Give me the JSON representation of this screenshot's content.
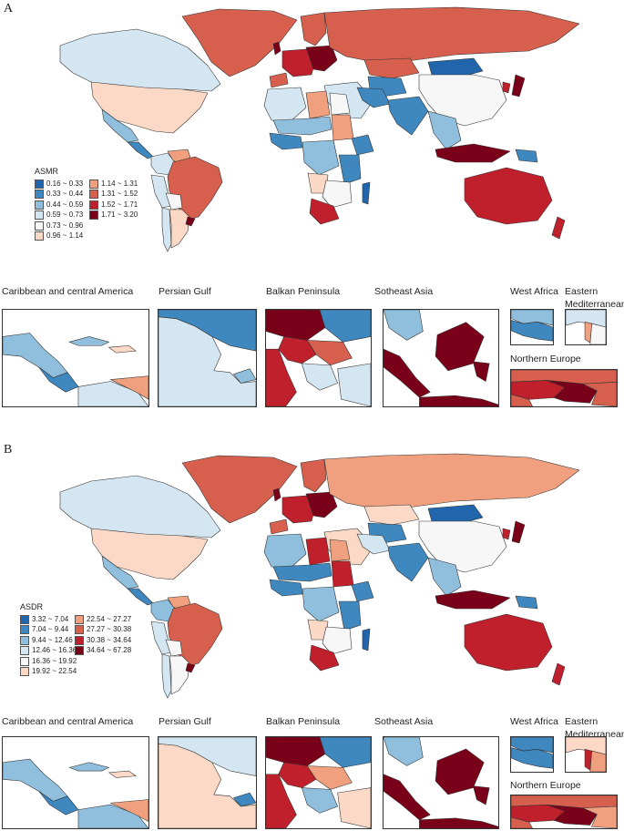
{
  "panels": [
    {
      "letter": "A",
      "legend_title": "ASMR",
      "legend": [
        {
          "label": "0.16 ~ 0.33",
          "color": "#2166ac"
        },
        {
          "label": "0.33 ~ 0.44",
          "color": "#3f87bf"
        },
        {
          "label": "0.44 ~ 0.59",
          "color": "#8fbfdd"
        },
        {
          "label": "0.59 ~ 0.73",
          "color": "#d4e6f2"
        },
        {
          "label": "0.73 ~ 0.96",
          "color": "#f7f7f7"
        },
        {
          "label": "0.96 ~ 1.14",
          "color": "#fbd9c6"
        },
        {
          "label": "1.14 ~ 1.31",
          "color": "#f0a07e"
        },
        {
          "label": "1.31 ~ 1.52",
          "color": "#d6604d"
        },
        {
          "label": "1.52 ~ 1.71",
          "color": "#c0202b"
        },
        {
          "label": "1.71 ~ 3.20",
          "color": "#7a0019"
        }
      ],
      "insets": [
        {
          "label": "Caribbean and central America"
        },
        {
          "label": "Persian Gulf"
        },
        {
          "label": "Balkan Peninsula"
        },
        {
          "label": "Sotheast Asia"
        },
        {
          "label": "West Africa"
        },
        {
          "label": "Eastern\nMediterranean"
        },
        {
          "label": "Northern Europe"
        }
      ]
    },
    {
      "letter": "B",
      "legend_title": "ASDR",
      "legend": [
        {
          "label": "3.32 ~ 7.04",
          "color": "#2166ac"
        },
        {
          "label": "7.04 ~ 9.44",
          "color": "#3f87bf"
        },
        {
          "label": "9.44 ~ 12.46",
          "color": "#8fbfdd"
        },
        {
          "label": "12.46 ~ 16.36",
          "color": "#d4e6f2"
        },
        {
          "label": "16.36 ~ 19.92",
          "color": "#f7f7f7"
        },
        {
          "label": "19.92 ~ 22.54",
          "color": "#fbd9c6"
        },
        {
          "label": "22.54 ~ 27.27",
          "color": "#f0a07e"
        },
        {
          "label": "27.27 ~ 30.38",
          "color": "#d6604d"
        },
        {
          "label": "30.38 ~ 34.64",
          "color": "#c0202b"
        },
        {
          "label": "34.64 ~ 67.28",
          "color": "#7a0019"
        }
      ],
      "insets": [
        {
          "label": "Caribbean and central America"
        },
        {
          "label": "Persian Gulf"
        },
        {
          "label": "Balkan Peninsula"
        },
        {
          "label": "Sotheast Asia"
        },
        {
          "label": "West Africa"
        },
        {
          "label": "Eastern\nMediterranean"
        },
        {
          "label": "Northern Europe"
        }
      ]
    }
  ],
  "regions": {
    "A": {
      "greenland": "#d6604d",
      "canada": "#d4e6f2",
      "usa": "#fbd9c6",
      "mexico": "#8fbfdd",
      "central_america": "#3f87bf",
      "colombia": "#d4e6f2",
      "venezuela": "#f0a07e",
      "peru": "#d4e6f2",
      "brazil": "#d6604d",
      "bolivia": "#f7f7f7",
      "argentina": "#fbd9c6",
      "chile": "#d4e6f2",
      "uruguay": "#7a0019",
      "russia": "#d6604d",
      "scandinavia": "#d6604d",
      "west_europe": "#c0202b",
      "east_europe": "#7a0019",
      "uk": "#7a0019",
      "iberia": "#d6604d",
      "mongolia": "#2166ac",
      "china": "#f7f7f7",
      "kazakhstan": "#d6604d",
      "central_asia": "#3f87bf",
      "middle_east": "#d4e6f2",
      "iran": "#3f87bf",
      "india": "#3f87bf",
      "se_asia": "#8fbfdd",
      "indonesia": "#7a0019",
      "png": "#3f87bf",
      "japan": "#7a0019",
      "korea": "#c0202b",
      "australia": "#c0202b",
      "new_zealand": "#c0202b",
      "nw_africa": "#d4e6f2",
      "libya": "#f0a07e",
      "egypt": "#f7f7f7",
      "sahel": "#8fbfdd",
      "west_africa": "#3f87bf",
      "sudan": "#f0a07e",
      "ethiopia": "#3f87bf",
      "central_africa": "#8fbfdd",
      "east_africa": "#3f87bf",
      "southern_africa": "#f7f7f7",
      "south_africa": "#c0202b",
      "madagascar": "#2166ac",
      "angola": "#fbd9c6"
    },
    "B": {
      "greenland": "#d6604d",
      "canada": "#d4e6f2",
      "usa": "#fbd9c6",
      "mexico": "#8fbfdd",
      "central_america": "#3f87bf",
      "colombia": "#8fbfdd",
      "venezuela": "#f0a07e",
      "peru": "#d4e6f2",
      "brazil": "#d6604d",
      "bolivia": "#f7f7f7",
      "argentina": "#f7f7f7",
      "chile": "#d4e6f2",
      "uruguay": "#7a0019",
      "russia": "#f0a07e",
      "scandinavia": "#d6604d",
      "west_europe": "#c0202b",
      "east_europe": "#7a0019",
      "uk": "#7a0019",
      "iberia": "#d6604d",
      "mongolia": "#2166ac",
      "china": "#f7f7f7",
      "kazakhstan": "#fbd9c6",
      "central_asia": "#3f87bf",
      "middle_east": "#fbd9c6",
      "iran": "#d4e6f2",
      "india": "#3f87bf",
      "se_asia": "#8fbfdd",
      "indonesia": "#7a0019",
      "png": "#3f87bf",
      "japan": "#7a0019",
      "korea": "#c0202b",
      "australia": "#c0202b",
      "new_zealand": "#c0202b",
      "nw_africa": "#8fbfdd",
      "libya": "#c0202b",
      "egypt": "#f0a07e",
      "sahel": "#3f87bf",
      "west_africa": "#3f87bf",
      "sudan": "#c0202b",
      "ethiopia": "#3f87bf",
      "central_africa": "#8fbfdd",
      "east_africa": "#3f87bf",
      "southern_africa": "#f7f7f7",
      "south_africa": "#c0202b",
      "madagascar": "#2166ac",
      "angola": "#fbd9c6"
    }
  }
}
